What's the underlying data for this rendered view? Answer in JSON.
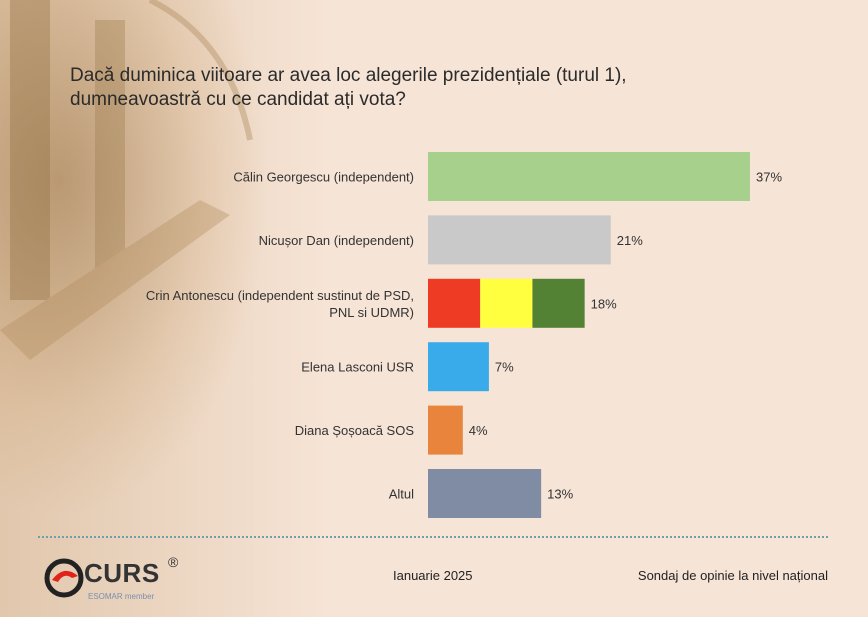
{
  "header": {
    "title_line1": "Dacă duminica viitoare ar avea loc alegerile prezidențiale (turul 1),",
    "title_line2": "dumneavoastră cu ce candidat ați vota?"
  },
  "chart_data": {
    "type": "bar",
    "orientation": "horizontal",
    "xlim": [
      0,
      37
    ],
    "categories": [
      [
        "Călin Georgescu (independent)"
      ],
      [
        "Nicușor Dan (independent)"
      ],
      [
        "Crin Antonescu (independent sustinut de PSD,",
        "PNL si UDMR)"
      ],
      [
        "Elena Lasconi USR"
      ],
      [
        "Diana Șoșoacă SOS"
      ],
      [
        "Altul"
      ]
    ],
    "values": [
      37,
      21,
      18,
      7,
      4,
      13
    ],
    "value_labels": [
      "37%",
      "21%",
      "18%",
      "7%",
      "4%",
      "13%"
    ],
    "colors": [
      [
        "#a8d08d"
      ],
      [
        "#c9c9c9"
      ],
      [
        "#ee3b24",
        "#ffff40",
        "#548235"
      ],
      [
        "#3aabea"
      ],
      [
        "#e8843c"
      ],
      [
        "#7f8ca3"
      ]
    ],
    "grid": false,
    "legend": "none"
  },
  "footer": {
    "logo_text": "CURS",
    "logo_reg": "®",
    "logo_sub": "ESOMAR member",
    "date": "Ianuarie 2025",
    "source": "Sondaj de opinie la nivel național"
  }
}
